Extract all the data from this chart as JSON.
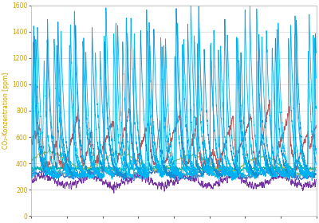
{
  "ylabel": "CO₂-Konzentration [ppm]",
  "ylim": [
    0,
    1600
  ],
  "yticks": [
    0,
    200,
    400,
    600,
    800,
    1000,
    1200,
    1400,
    1600
  ],
  "background_color": "#ffffff",
  "grid_color": "#d8d8d8",
  "ylabel_color": "#c8a000",
  "n_points": 2000,
  "figsize": [
    4.0,
    2.8
  ],
  "dpi": 100
}
